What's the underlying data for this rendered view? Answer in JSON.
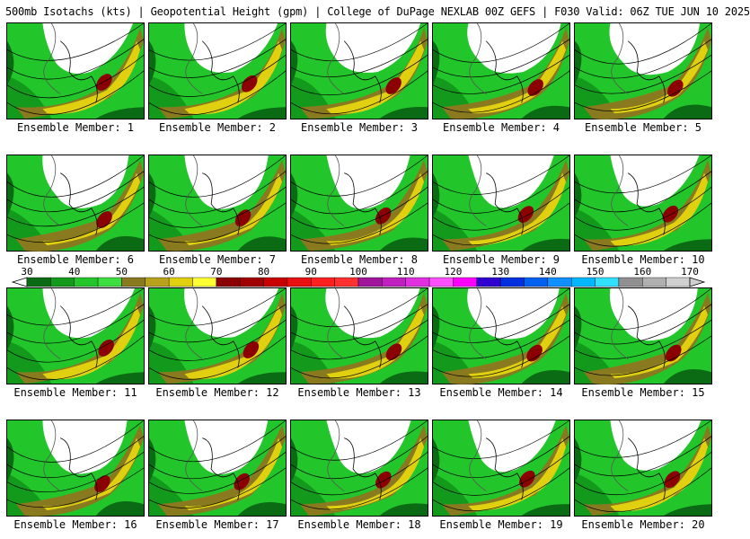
{
  "title": "500mb Isotachs (kts) | Geopotential Height (gpm) | College of DuPage NEXLAB   00Z GEFS | F030 Valid: 06Z TUE JUN 10 2025",
  "panel_label_prefix": "Ensemble Member: ",
  "members": [
    {
      "label": "Ensemble Member: 1",
      "max_wind": 80
    },
    {
      "label": "Ensemble Member: 2",
      "max_wind": 70
    },
    {
      "label": "Ensemble Member: 3",
      "max_wind": 80
    },
    {
      "label": "Ensemble Member: 4",
      "max_wind": 80
    },
    {
      "label": "Ensemble Member: 5",
      "max_wind": 80
    },
    {
      "label": "Ensemble Member: 6",
      "max_wind": 80
    },
    {
      "label": "Ensemble Member: 7",
      "max_wind": 80
    },
    {
      "label": "Ensemble Member: 8",
      "max_wind": 70
    },
    {
      "label": "Ensemble Member: 9",
      "max_wind": 70
    },
    {
      "label": "Ensemble Member: 10",
      "max_wind": 80
    },
    {
      "label": "Ensemble Member: 11",
      "max_wind": 70
    },
    {
      "label": "Ensemble Member: 12",
      "max_wind": 80
    },
    {
      "label": "Ensemble Member: 13",
      "max_wind": 70
    },
    {
      "label": "Ensemble Member: 14",
      "max_wind": 80
    },
    {
      "label": "Ensemble Member: 15",
      "max_wind": 80
    },
    {
      "label": "Ensemble Member: 16",
      "max_wind": 80
    },
    {
      "label": "Ensemble Member: 17",
      "max_wind": 80
    },
    {
      "label": "Ensemble Member: 18",
      "max_wind": 80
    },
    {
      "label": "Ensemble Member: 19",
      "max_wind": 80
    },
    {
      "label": "Ensemble Member: 20",
      "max_wind": 80
    }
  ],
  "colorbar": {
    "tick_labels": [
      "30",
      "40",
      "50",
      "60",
      "70",
      "80",
      "90",
      "100",
      "110",
      "120",
      "130",
      "140",
      "150",
      "160",
      "170"
    ],
    "colors": [
      "#0b6b14",
      "#139a1c",
      "#22c62a",
      "#3ddf40",
      "#8a7a1f",
      "#b8a21c",
      "#e0d010",
      "#ffff33",
      "#8b0000",
      "#a00000",
      "#c80000",
      "#e81010",
      "#ff2020",
      "#ff3030",
      "#a0149c",
      "#c020c0",
      "#e030e0",
      "#ff50ff",
      "#ff00ff",
      "#3000d0",
      "#0030e0",
      "#0060f0",
      "#1090ff",
      "#00b8ff",
      "#30e0ff",
      "#909090",
      "#b0b0b0",
      "#d0d0d0"
    ]
  }
}
